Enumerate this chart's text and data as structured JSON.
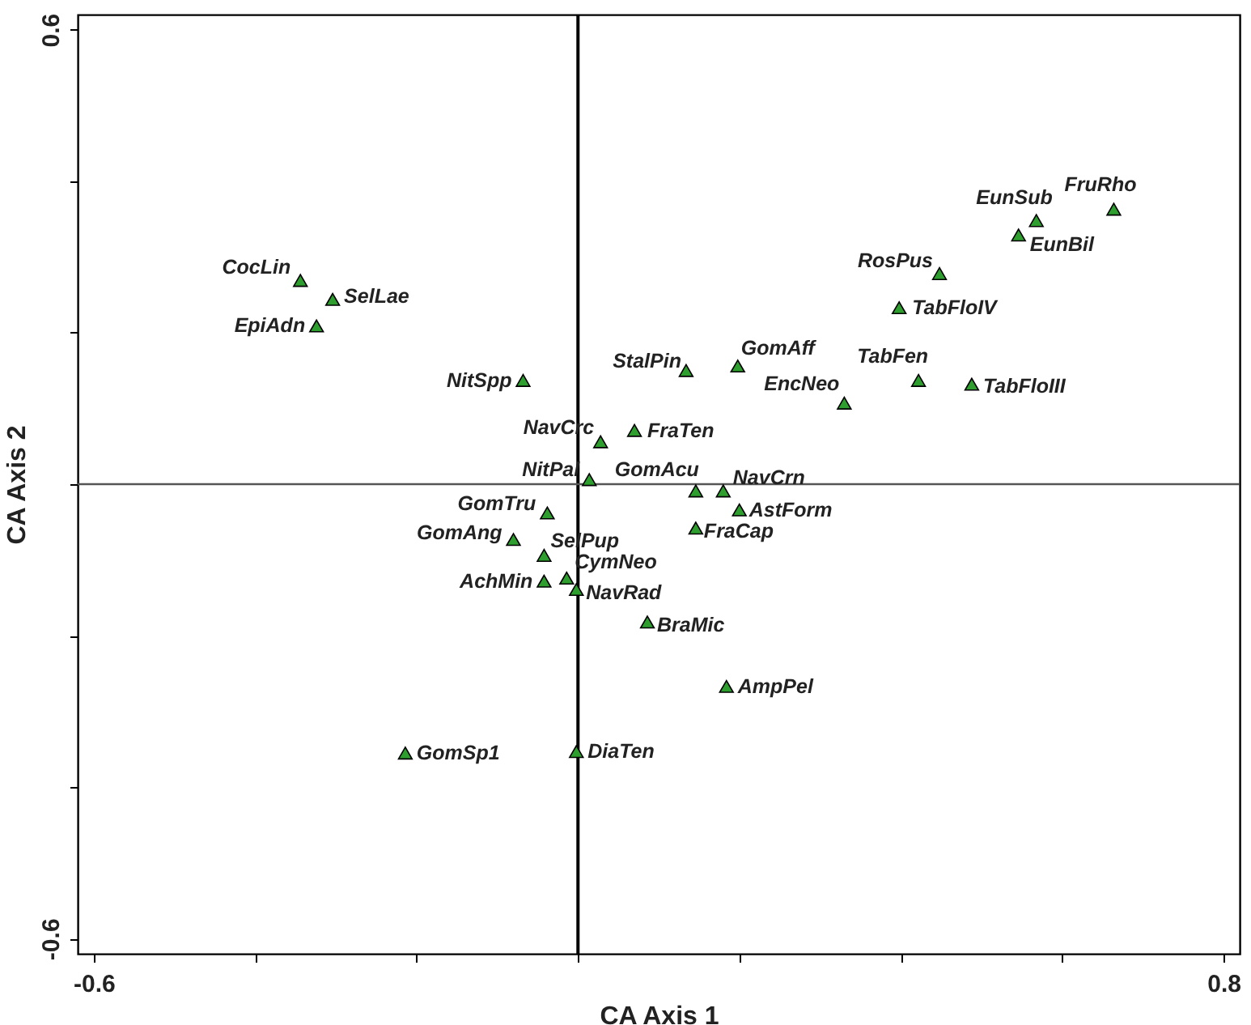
{
  "chart_data": {
    "type": "scatter",
    "xlabel": "CA Axis 1",
    "ylabel": "CA Axis 2",
    "xlim": [
      -0.62,
      0.82
    ],
    "ylim": [
      -0.62,
      0.62
    ],
    "xticks": [
      -0.6,
      {
        "value": -0.4,
        "label": null
      },
      {
        "value": -0.2,
        "label": null
      },
      {
        "value": 0,
        "label": null
      },
      {
        "value": 0.2,
        "label": null
      },
      {
        "value": 0.4,
        "label": null
      },
      {
        "value": 0.6,
        "label": null
      },
      0.8
    ],
    "yticks": [
      -0.6,
      {
        "value": -0.4,
        "label": null
      },
      {
        "value": -0.2,
        "label": null
      },
      {
        "value": 0,
        "label": null
      },
      {
        "value": 0.2,
        "label": null
      },
      {
        "value": 0.4,
        "label": null
      },
      0.6
    ],
    "marker": "triangle",
    "ref_lines": [
      {
        "axis": "x",
        "value": 0,
        "color": "#000000"
      },
      {
        "axis": "y",
        "value": 0,
        "color": "#555555"
      }
    ],
    "series": [
      {
        "color": "#2e9e2e",
        "x": [
          -0.344,
          -0.304,
          -0.324,
          -0.068,
          0.134,
          0.198,
          0.33,
          0.028,
          0.07,
          0.014,
          0.146,
          0.18,
          0.2,
          -0.038,
          -0.08,
          -0.042,
          0.146,
          -0.014,
          -0.042,
          -0.002,
          0.086,
          0.184,
          -0.214,
          -0.002,
          0.664,
          0.568,
          0.546,
          0.448,
          0.398,
          0.422,
          0.488
        ],
        "values": [
          0.269,
          0.244,
          0.209,
          0.137,
          0.15,
          0.156,
          0.107,
          0.056,
          0.071,
          0.006,
          -0.009,
          -0.009,
          -0.034,
          -0.038,
          -0.073,
          -0.094,
          -0.058,
          -0.124,
          -0.128,
          -0.139,
          -0.182,
          -0.267,
          -0.355,
          -0.353,
          0.363,
          0.348,
          0.329,
          0.278,
          0.233,
          0.137,
          0.132
        ],
        "value_labels": [
          "CocLin",
          "SelLae",
          "EpiAdn",
          "NitSpp",
          "StalPin",
          "GomAff",
          "EncNeo",
          "NavCrc",
          "FraTen",
          "NitPal",
          "GomAcu",
          "NavCrn",
          "AstForm",
          "GomTru",
          "GomAng",
          "SelPup",
          "FraCap",
          "CymNeo",
          "AchMin",
          "NavRad",
          "BraMic",
          "AmpPel",
          "GomSp1",
          "DiaTen",
          "FruRho",
          "EunSub",
          "EunBil",
          "RosPus",
          "TabFloIV",
          "TabFen",
          "TabFloIII"
        ]
      }
    ]
  }
}
